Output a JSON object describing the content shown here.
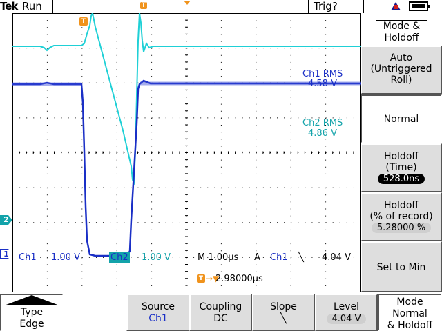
{
  "status": {
    "brand": "Tek",
    "run_state": "Run",
    "trigger_status": "Trig?",
    "icons": [
      "alert-icon",
      "battery-icon"
    ]
  },
  "colors": {
    "ch1": "#1a2fc6",
    "ch2": "#13a3aa",
    "marker": "#f0931c",
    "grid": "#000000"
  },
  "measurements": {
    "ch1_rms_label": "Ch1 RMS",
    "ch1_rms_value": "4.58 V",
    "ch2_rms_label": "Ch2 RMS",
    "ch2_rms_value": "4.86 V"
  },
  "ground_markers": {
    "ch1": "1",
    "ch2": "2"
  },
  "trigger_marker": "T",
  "readout": {
    "ch1_label": "Ch1",
    "ch1_scale": "1.00 V",
    "ch2_label": "Ch2",
    "ch2_scale": "1.00 V",
    "horizontal": "M 1.00µs",
    "trigger_mode": "A",
    "trigger_source": "Ch1",
    "slope": "╲",
    "trigger_level": "4.04 V",
    "delay": "2.98000µs",
    "delay_arrow": "→▼"
  },
  "side_menu": {
    "title_line1": "Mode &",
    "title_line2": "Holdoff",
    "auto_line1": "Auto",
    "auto_line2": "(Untriggered",
    "auto_line3": "Roll)",
    "normal": "Normal",
    "holdoff_time_line1": "Holdoff",
    "holdoff_time_line2": "(Time)",
    "holdoff_time_value": "528.0ns",
    "holdoff_pct_line1": "Holdoff",
    "holdoff_pct_line2": "(% of record)",
    "holdoff_pct_value": "5.28000 %",
    "set_to_min": "Set to Min"
  },
  "bottom_menu": {
    "type_label": "Type",
    "type_value": "Edge",
    "source_label": "Source",
    "source_value": "Ch1",
    "coupling_label": "Coupling",
    "coupling_value": "DC",
    "slope_label": "Slope",
    "slope_value": "╲",
    "level_label": "Level",
    "level_value": "4.04 V",
    "mode_line1": "Mode",
    "mode_line2": "Normal",
    "mode_line3": "& Holdoff"
  }
}
